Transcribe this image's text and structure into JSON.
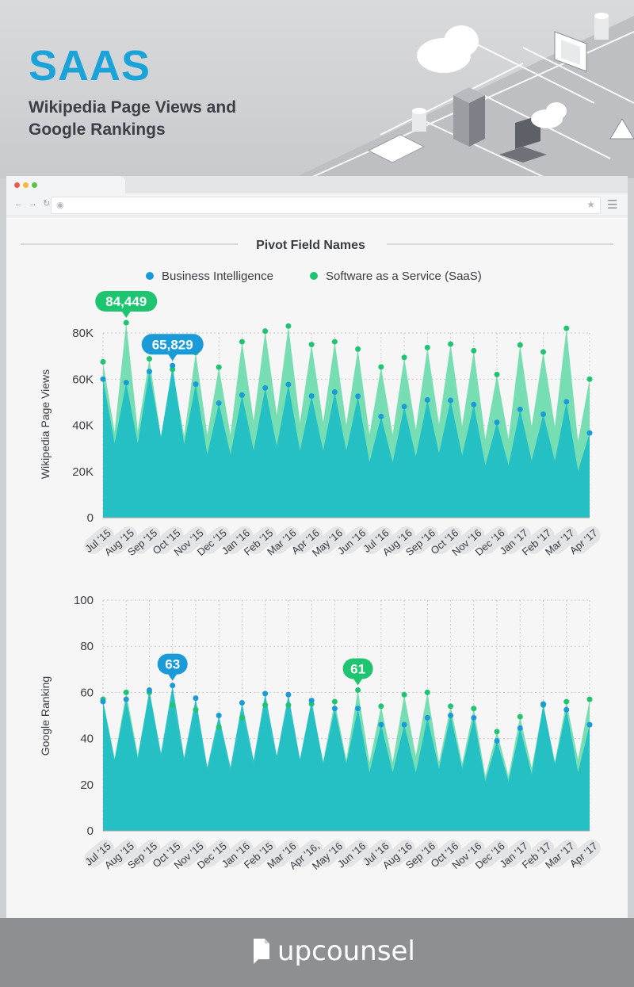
{
  "header": {
    "title": "SAAS",
    "subtitle": "Wikipedia Page Views and Google Rankings"
  },
  "colors": {
    "bi": "#1a9bd7",
    "saas": "#1ec46f",
    "bi_fill": "#20bec4",
    "saas_fill": "#6fdcae",
    "title": "#1aa3d9"
  },
  "legend": {
    "title": "Pivot Field Names",
    "items": [
      "Business Intelligence",
      "Software as a Service (SaaS)"
    ]
  },
  "brand": {
    "name": "upcounsel"
  },
  "chart_data": [
    {
      "type": "area",
      "ylabel": "Wikipedia Page Views",
      "ylim": [
        0,
        80000
      ],
      "yticks": [
        "0",
        "20K",
        "40K",
        "60K",
        "80K"
      ],
      "categories": [
        "Jul '15",
        "Aug '15",
        "Sep '15",
        "Oct '15",
        "Nov '15",
        "Dec '15",
        "Jan '16",
        "Feb '15",
        "Mar '16",
        "Apr '16",
        "May '16",
        "Jun '16",
        "Jul '16",
        "Aug '16",
        "Sep '16",
        "Oct '16",
        "Nov '16",
        "Dec '16",
        "Jan '17",
        "Feb '17",
        "Mar '17",
        "Apr '17"
      ],
      "series": [
        {
          "name": "Business Intelligence",
          "values": [
            60000,
            58500,
            63300,
            65829,
            57800,
            49600,
            53100,
            56200,
            57700,
            52700,
            54400,
            52600,
            43800,
            48100,
            51000,
            50800,
            49000,
            41300,
            46900,
            44800,
            50200,
            36700
          ]
        },
        {
          "name": "Software as a Service (SaaS)",
          "values": [
            67500,
            84449,
            68800,
            64200,
            71500,
            65200,
            76200,
            80800,
            83000,
            75000,
            76200,
            73000,
            65300,
            69400,
            73700,
            75200,
            72300,
            62000,
            74800,
            71800,
            82000,
            60000
          ]
        }
      ],
      "callouts": [
        {
          "series": 1,
          "index": 1,
          "label": "84,449"
        },
        {
          "series": 0,
          "index": 3,
          "label": "65,829"
        }
      ]
    },
    {
      "type": "area",
      "ylabel": "Google Ranking",
      "ylim": [
        0,
        100
      ],
      "yticks": [
        "0",
        "20",
        "40",
        "60",
        "80",
        "100"
      ],
      "categories": [
        "Jul '15",
        "Aug '15",
        "Sep '15",
        "Oct '15",
        "Nov '15",
        "Dec '15",
        "Jan '16",
        "Feb '15",
        "Mar '16",
        "Apr '16,",
        "May '16",
        "Jun '16",
        "Jul '16",
        "Aug '16",
        "Sep '16",
        "Oct '16",
        "Nov '16",
        "Dec '16",
        "Jan '17",
        "Feb '17",
        "Mar '17",
        "Apr '17"
      ],
      "series": [
        {
          "name": "Business Intelligence",
          "values": [
            56,
            57,
            61,
            63,
            57.5,
            50,
            55.5,
            59.5,
            59,
            56.5,
            53,
            53,
            46,
            46,
            49,
            50,
            49,
            39,
            44.5,
            55,
            52.5,
            46
          ]
        },
        {
          "name": "Software as a Service (SaaS)",
          "values": [
            57,
            60,
            60,
            54.5,
            52.5,
            45,
            49,
            54.5,
            54.5,
            55,
            56,
            61,
            54,
            59,
            60,
            54,
            53,
            43,
            49.5,
            54.5,
            56,
            57
          ]
        }
      ],
      "callouts": [
        {
          "series": 0,
          "index": 3,
          "label": "63"
        },
        {
          "series": 1,
          "index": 11,
          "label": "61"
        }
      ]
    }
  ]
}
